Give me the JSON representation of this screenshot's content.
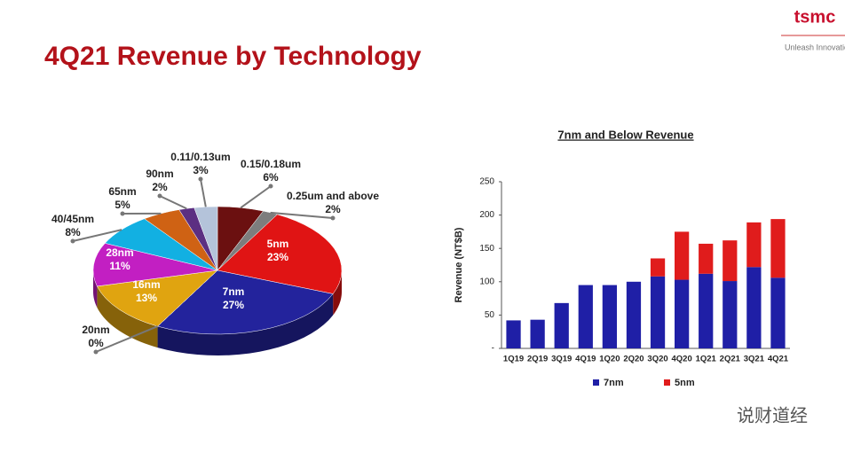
{
  "header": {
    "title": "4Q21 Revenue by Technology",
    "logo": "tsmc",
    "tagline": "Unleash Innovation",
    "watermark": "说财道经"
  },
  "chart_data": [
    {
      "type": "pie",
      "categories": [
        "0.15/0.18um",
        "0.25um and above",
        "5nm",
        "7nm",
        "20nm",
        "16nm",
        "28nm",
        "40/45nm",
        "65nm",
        "90nm",
        "0.11/0.13um"
      ],
      "values": [
        6,
        2,
        23,
        27,
        0,
        13,
        11,
        8,
        5,
        2,
        3
      ],
      "value_labels": [
        "6%",
        "2%",
        "23%",
        "27%",
        "0%",
        "13%",
        "11%",
        "8%",
        "5%",
        "2%",
        "3%"
      ],
      "colors": [
        "#6b1010",
        "#7d7d7d",
        "#e01414",
        "#23239c",
        "#8a8a8a",
        "#e0a410",
        "#c21fc2",
        "#12b0e2",
        "#cf6214",
        "#5c2f82",
        "#b4c3da"
      ]
    },
    {
      "type": "bar",
      "stacked": true,
      "title": "7nm and Below Revenue",
      "y_label": "Revenue (NT$B)",
      "categories": [
        "1Q19",
        "2Q19",
        "3Q19",
        "4Q19",
        "1Q20",
        "2Q20",
        "3Q20",
        "4Q20",
        "1Q21",
        "2Q21",
        "3Q21",
        "4Q21"
      ],
      "series": [
        {
          "name": "7nm",
          "color": "#1f1fa6",
          "values": [
            42,
            43,
            68,
            95,
            95,
            100,
            108,
            103,
            112,
            101,
            122,
            106
          ]
        },
        {
          "name": "5nm",
          "color": "#e01c1c",
          "values": [
            0,
            0,
            0,
            0,
            0,
            0,
            27,
            72,
            45,
            61,
            67,
            88
          ]
        }
      ],
      "ylim": [
        0,
        250
      ],
      "yticks": [
        {
          "value": 0,
          "label": "-"
        },
        50,
        100,
        150,
        200,
        250
      ],
      "legend": "bottom"
    }
  ]
}
